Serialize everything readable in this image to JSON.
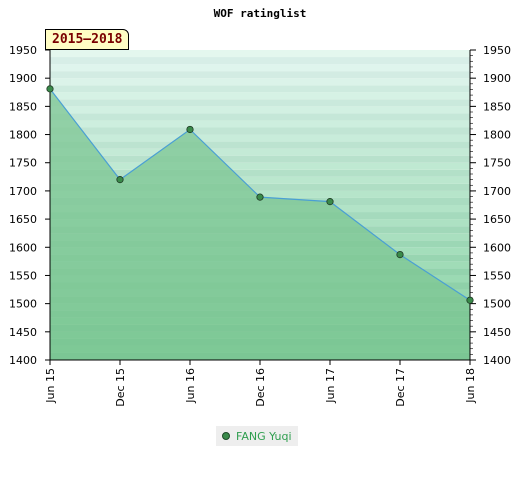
{
  "chart_data": {
    "type": "area",
    "title": "WOF ratinglist",
    "period_label": "2015–2018",
    "x": [
      "Jun 15",
      "Dec 15",
      "Jun 16",
      "Dec 16",
      "Jun 17",
      "Dec 17",
      "Jun 18"
    ],
    "series": [
      {
        "name": "FANG Yuqi",
        "values": [
          1881,
          1720,
          1809,
          1689,
          1681,
          1587,
          1506
        ]
      }
    ],
    "y_ticks": [
      1400,
      1450,
      1500,
      1550,
      1600,
      1650,
      1700,
      1750,
      1800,
      1850,
      1900,
      1950
    ],
    "ylim": [
      1400,
      1950
    ],
    "legend_position": "bottom",
    "colors": {
      "line": "#4a9fd4",
      "area": "#7cc693",
      "marker_fill": "#3a8a4a",
      "band_dark": "#7cc494",
      "band_light": "#dff2e6"
    }
  }
}
